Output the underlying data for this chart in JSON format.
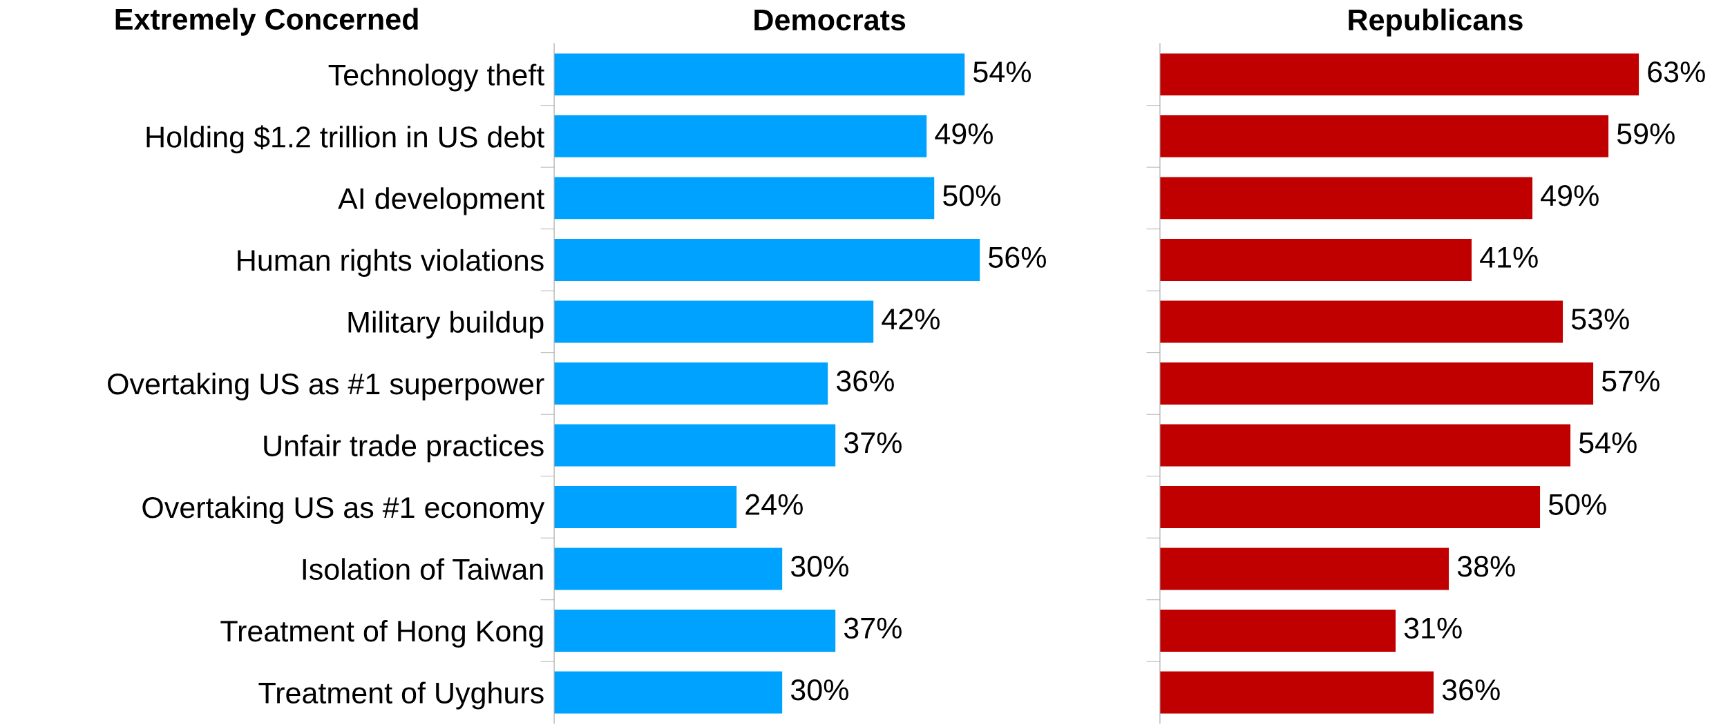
{
  "chart_data": [
    {
      "type": "bar",
      "orientation": "horizontal",
      "title": "Democrats",
      "annotations": [
        "Extremely Concerned"
      ],
      "tick_labels": "y",
      "color": "#00a2ff",
      "categories": [
        "Technology theft",
        "Holding $1.2 trillion in US debt",
        "AI development",
        "Human rights violations",
        "Military buildup",
        "Overtaking US as #1 superpower",
        "Unfair trade practices",
        "Overtaking US as #1 economy",
        "Isolation of Taiwan",
        "Treatment of Hong Kong",
        "Treatment of Uyghurs"
      ],
      "values": [
        54,
        49,
        50,
        56,
        42,
        36,
        37,
        24,
        30,
        37,
        30
      ],
      "value_labels": [
        "54%",
        "49%",
        "50%",
        "56%",
        "42%",
        "36%",
        "37%",
        "24%",
        "30%",
        "37%",
        "30%"
      ]
    },
    {
      "type": "bar",
      "orientation": "horizontal",
      "title": "Republicans",
      "tick_labels": false,
      "color": "#c00000",
      "categories": [
        null,
        null,
        null,
        null,
        null,
        null,
        null,
        null,
        null,
        null,
        null
      ],
      "values": [
        63,
        59,
        49,
        41,
        53,
        57,
        54,
        50,
        38,
        31,
        36
      ],
      "value_labels": [
        "63%",
        "59%",
        "49%",
        "41%",
        "53%",
        "57%",
        "54%",
        "50%",
        "38%",
        "31%",
        "36%"
      ]
    }
  ]
}
